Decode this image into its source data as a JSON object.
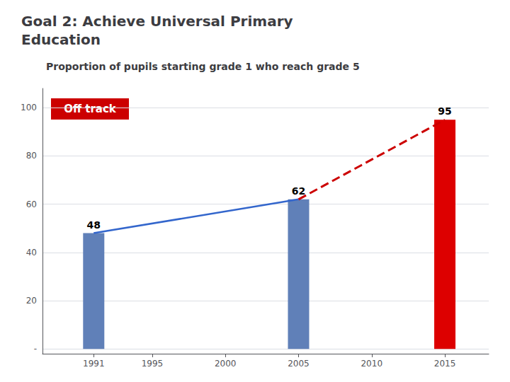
{
  "chart_data": {
    "type": "bar",
    "title": "Goal 2: Achieve Universal Primary\nEducation",
    "subtitle": "Proportion of pupils starting grade 1 who reach grade 5",
    "x": [
      1991,
      2005,
      2015
    ],
    "series": [
      {
        "type": "bar",
        "values": [
          48,
          62,
          95
        ],
        "colors": [
          "#6080b8",
          "#6080b8",
          "#dd0000"
        ],
        "data_labels": true
      },
      {
        "type": "line",
        "x": [
          1991,
          2005
        ],
        "values": [
          48,
          62
        ],
        "color": "#3366cc",
        "line_style": "solid"
      },
      {
        "type": "line",
        "x": [
          2005,
          2015
        ],
        "values": [
          62,
          95
        ],
        "color": "#cc0000",
        "line_style": "dashed"
      }
    ],
    "annotations": [
      {
        "text": "Off track",
        "color": "#cc0000"
      }
    ],
    "xlim": [
      1987.5,
      2018
    ],
    "xticks": [
      1991,
      1995,
      2000,
      2005,
      2010,
      2015
    ],
    "ylim": [
      -2,
      108
    ],
    "yticks": [
      {
        "value": 0,
        "label": "-"
      },
      20,
      40,
      60,
      80,
      100
    ],
    "grid": true
  }
}
